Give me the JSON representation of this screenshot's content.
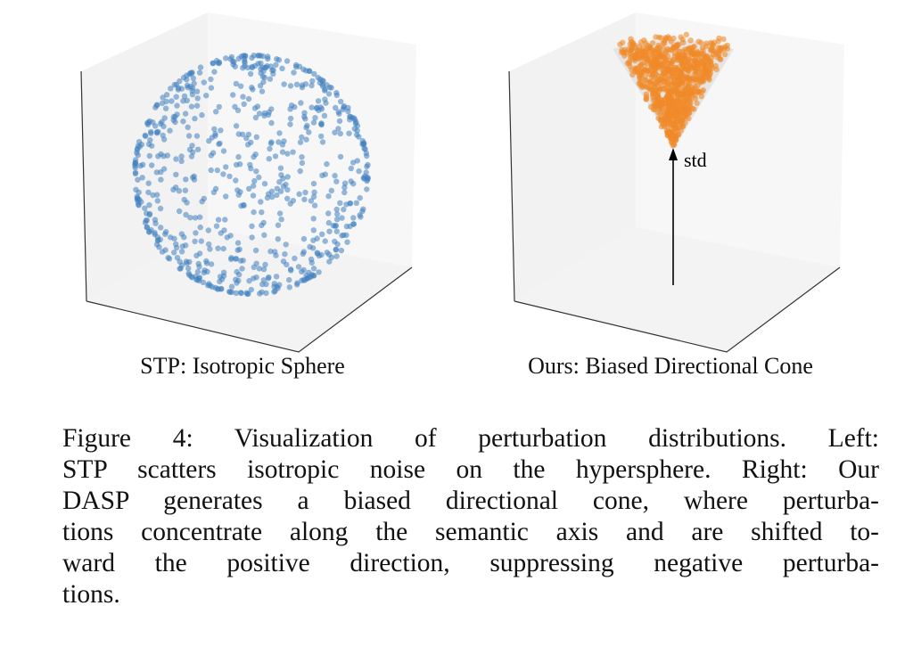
{
  "figure": {
    "panels": [
      {
        "label": "STP: Isotropic Sphere",
        "point_color": "#3f7fbf",
        "shape": "sphere",
        "n_points": 900
      },
      {
        "label": "Ours: Biased Directional Cone",
        "point_color": "#f08a2a",
        "shape": "cone",
        "n_points": 900,
        "arrow_label": "std"
      }
    ],
    "caption_lines": [
      "Figure 4: Visualization of perturbation distributions. Left:",
      "STP scatters isotropic noise on the hypersphere. Right: Our",
      "DASP generates a biased directional cone, where perturba-",
      "tions concentrate along the semantic axis and are shifted to-",
      "ward the positive direction, suppressing negative perturba-",
      "tions."
    ]
  },
  "chart_data": [
    {
      "type": "scatter",
      "title": "STP: Isotropic Sphere",
      "distribution": "isotropic sphere",
      "color": "#3f7fbf"
    },
    {
      "type": "scatter",
      "title": "Ours: Biased Directional Cone",
      "distribution": "directional cone",
      "color": "#f08a2a",
      "annotation": "std"
    }
  ]
}
